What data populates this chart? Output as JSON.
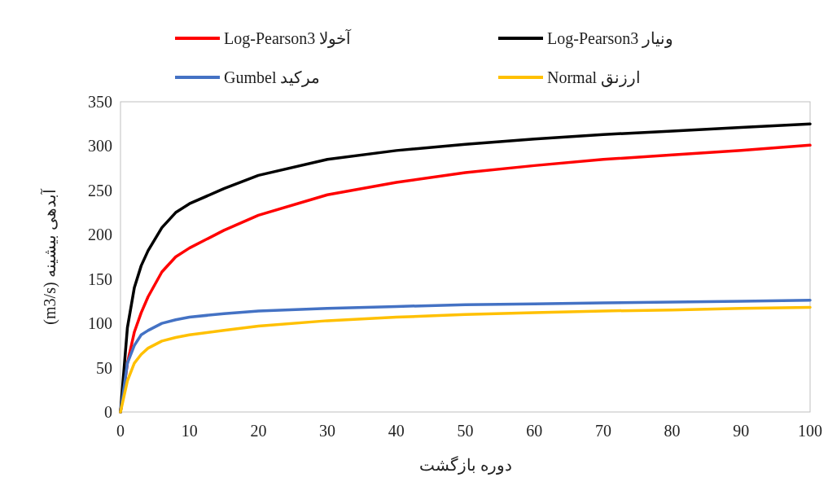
{
  "chart_data": {
    "type": "line",
    "xlabel": "دوره بازگشت",
    "ylabel": "آبدهی بیشینه (m3/s)",
    "x": [
      0,
      1,
      2,
      3,
      4,
      6,
      8,
      10,
      15,
      20,
      30,
      40,
      50,
      60,
      70,
      80,
      90,
      100
    ],
    "xlim": [
      0,
      100
    ],
    "ylim": [
      0,
      350
    ],
    "xticks": [
      0,
      10,
      20,
      30,
      40,
      50,
      60,
      70,
      80,
      90,
      100
    ],
    "yticks": [
      0,
      50,
      100,
      150,
      200,
      250,
      300,
      350
    ],
    "legend": "top",
    "series": [
      {
        "name": "Log-Pearson3 آخولا",
        "color": "#ff0000",
        "values": [
          0,
          55,
          90,
          112,
          130,
          158,
          175,
          185,
          205,
          222,
          245,
          259,
          270,
          278,
          285,
          290,
          295,
          301
        ]
      },
      {
        "name": "Log-Pearson3 ونیار",
        "color": "#000000",
        "values": [
          0,
          95,
          140,
          165,
          182,
          208,
          225,
          235,
          252,
          267,
          285,
          295,
          302,
          308,
          313,
          317,
          321,
          325
        ]
      },
      {
        "name": "Gumbel مرکید",
        "color": "#4472c4",
        "values": [
          0,
          55,
          75,
          87,
          92,
          100,
          104,
          107,
          111,
          114,
          117,
          119,
          121,
          122,
          123,
          124,
          125,
          126
        ]
      },
      {
        "name": "Normal ارزنق",
        "color": "#ffc000",
        "values": [
          0,
          35,
          55,
          65,
          72,
          80,
          84,
          87,
          92,
          97,
          103,
          107,
          110,
          112,
          114,
          115,
          117,
          118
        ]
      }
    ]
  }
}
